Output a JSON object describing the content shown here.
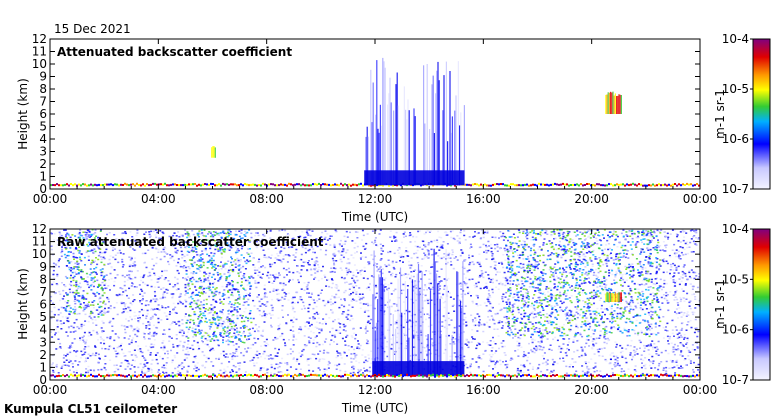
{
  "date": "15 Dec 2021",
  "footer": "Kumpula CL51 ceilometer",
  "colorbar": {
    "tick_labels": [
      "10-4",
      "10-5",
      "10-6",
      "10-7"
    ],
    "unit_label": "m-1 sr-1",
    "colors": [
      "#800080",
      "#e00000",
      "#ff9900",
      "#ffff00",
      "#33cc33",
      "#00b0ff",
      "#0000ff",
      "#f4f4ff"
    ]
  },
  "chart_data": [
    {
      "type": "heatmap",
      "title": "Attenuated backscatter coefficient",
      "xlabel": "Time (UTC)",
      "ylabel": "Height (km)",
      "xlim": [
        "00:00",
        "00:00"
      ],
      "ylim": [
        0,
        12
      ],
      "xticks": [
        "00:00",
        "04:00",
        "08:00",
        "12:00",
        "16:00",
        "20:00",
        "00:00"
      ],
      "yticks": [
        0,
        1,
        2,
        3,
        4,
        5,
        6,
        7,
        8,
        9,
        10,
        11,
        12
      ],
      "features": [
        {
          "kind": "surface",
          "start_h": 0,
          "end_h": 24,
          "top_km": 0.5,
          "level": "mixed"
        },
        {
          "kind": "cloud",
          "start_h": 5.95,
          "end_h": 6.1,
          "bottom_km": 2.5,
          "top_km": 3.5,
          "level": "high"
        },
        {
          "kind": "precipitation",
          "start_h": 11.6,
          "end_h": 15.3,
          "bottom_km": 0.3,
          "top_km": 10.5,
          "level": "low"
        },
        {
          "kind": "cloud",
          "start_h": 20.5,
          "end_h": 21.1,
          "bottom_km": 6.0,
          "top_km": 7.8,
          "level": "high"
        }
      ]
    },
    {
      "type": "heatmap",
      "title": "Raw attenuated backscatter coefficient",
      "xlabel": "Time (UTC)",
      "ylabel": "Height (km)",
      "xlim": [
        "00:00",
        "00:00"
      ],
      "ylim": [
        0,
        12
      ],
      "xticks": [
        "00:00",
        "04:00",
        "08:00",
        "12:00",
        "16:00",
        "20:00",
        "00:00"
      ],
      "yticks": [
        0,
        1,
        2,
        3,
        4,
        5,
        6,
        7,
        8,
        9,
        10,
        11,
        12
      ],
      "features": [
        {
          "kind": "noise",
          "start_h": 0,
          "end_h": 24,
          "bottom_km": 0.5,
          "top_km": 12,
          "level": "low"
        },
        {
          "kind": "noise",
          "start_h": 0.5,
          "end_h": 2.0,
          "bottom_km": 5,
          "top_km": 12,
          "level": "medium"
        },
        {
          "kind": "noise",
          "start_h": 5.0,
          "end_h": 7.4,
          "bottom_km": 3,
          "top_km": 12,
          "level": "medium"
        },
        {
          "kind": "noise",
          "start_h": 16.8,
          "end_h": 22.5,
          "bottom_km": 3.5,
          "top_km": 12,
          "level": "medium"
        },
        {
          "kind": "precipitation",
          "start_h": 11.9,
          "end_h": 15.3,
          "bottom_km": 0.3,
          "top_km": 10.5,
          "level": "low"
        },
        {
          "kind": "cloud",
          "start_h": 20.5,
          "end_h": 21.1,
          "bottom_km": 6.2,
          "top_km": 7.0,
          "level": "high"
        },
        {
          "kind": "surface",
          "start_h": 0,
          "end_h": 24,
          "top_km": 0.5,
          "level": "mixed"
        }
      ]
    }
  ]
}
